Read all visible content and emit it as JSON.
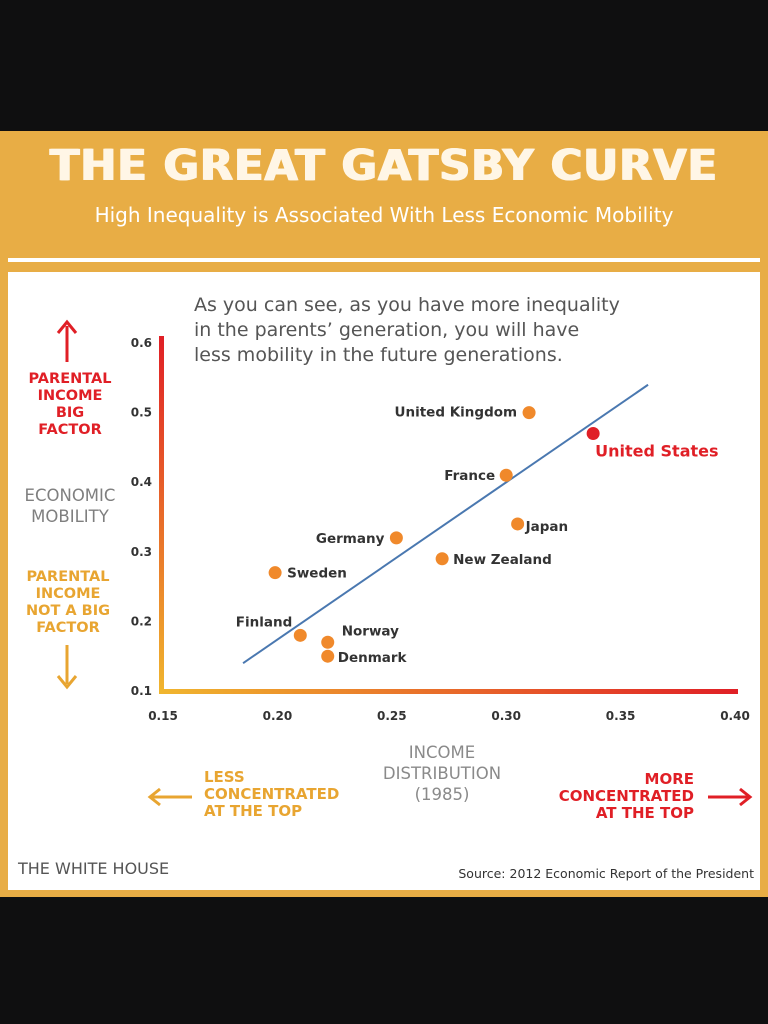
{
  "title": "THE GREAT GATSBY CURVE",
  "subtitle": "High Inequality is Associated With Less Economic Mobility",
  "annotation": [
    "As you can see, as you have more inequality",
    "in the parents’ generation, you will have",
    "less mobility in the future generations."
  ],
  "y_side": {
    "top": [
      "PARENTAL",
      "INCOME",
      "BIG",
      "FACTOR"
    ],
    "middle": [
      "ECONOMIC",
      "MOBILITY"
    ],
    "bottom": [
      "PARENTAL",
      "INCOME",
      "NOT A BIG",
      "FACTOR"
    ]
  },
  "x_side": {
    "left": [
      "LESS",
      "CONCENTRATED",
      "AT THE TOP"
    ],
    "center": [
      "INCOME",
      "DISTRIBUTION",
      "(1985)"
    ],
    "right": [
      "MORE",
      "CONCENTRATED",
      "AT THE TOP"
    ]
  },
  "footer": {
    "left": "THE WHITE HOUSE",
    "source": "Source: 2012 Economic Report of the President"
  },
  "colors": {
    "frame": "#e8ad45",
    "orange": "#f0892b",
    "red": "#e01f26",
    "gold": "#e8a531",
    "trend": "#4a78b0",
    "gray": "#7f7f7f"
  },
  "chart_data": {
    "type": "scatter",
    "xlim": [
      0.15,
      0.4
    ],
    "ylim": [
      0.1,
      0.6
    ],
    "x_ticks": [
      "0.15",
      "0.20",
      "0.25",
      "0.30",
      "0.35",
      "0.40"
    ],
    "y_ticks": [
      "0.1",
      "0.2",
      "0.3",
      "0.4",
      "0.5",
      "0.6"
    ],
    "grid": false,
    "points": [
      {
        "label": "United Kingdom",
        "x": 0.31,
        "y": 0.5,
        "highlight": false
      },
      {
        "label": "United States",
        "x": 0.338,
        "y": 0.47,
        "highlight": true
      },
      {
        "label": "France",
        "x": 0.3,
        "y": 0.41,
        "highlight": false
      },
      {
        "label": "Japan",
        "x": 0.305,
        "y": 0.34,
        "highlight": false
      },
      {
        "label": "Germany",
        "x": 0.252,
        "y": 0.32,
        "highlight": false
      },
      {
        "label": "New Zealand",
        "x": 0.272,
        "y": 0.29,
        "highlight": false
      },
      {
        "label": "Sweden",
        "x": 0.199,
        "y": 0.27,
        "highlight": false
      },
      {
        "label": "Finland",
        "x": 0.21,
        "y": 0.18,
        "highlight": false
      },
      {
        "label": "Norway",
        "x": 0.222,
        "y": 0.17,
        "highlight": false
      },
      {
        "label": "Denmark",
        "x": 0.222,
        "y": 0.15,
        "highlight": false
      }
    ],
    "trendline": [
      {
        "x": 0.185,
        "y": 0.14
      },
      {
        "x": 0.362,
        "y": 0.54
      }
    ]
  }
}
